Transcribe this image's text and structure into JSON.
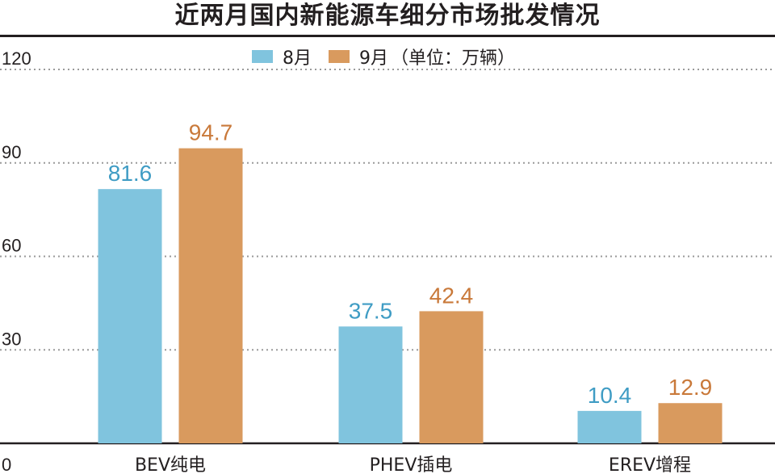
{
  "chart_data": {
    "type": "bar",
    "title": "近两月国内新能源车细分市场批发情况",
    "categories": [
      "BEV纯电",
      "PHEV插电",
      "EREV增程"
    ],
    "series": [
      {
        "name": "8月",
        "values": [
          81.6,
          37.5,
          10.4
        ],
        "color": "#80c4de"
      },
      {
        "name": "9月",
        "values": [
          94.7,
          42.4,
          12.9
        ],
        "color": "#d99a5e"
      }
    ],
    "unit_note": "（单位：万辆）",
    "yticks": [
      0,
      30,
      60,
      90,
      120
    ],
    "ylim": [
      0,
      120
    ],
    "grid": true,
    "legend": "top-center"
  }
}
